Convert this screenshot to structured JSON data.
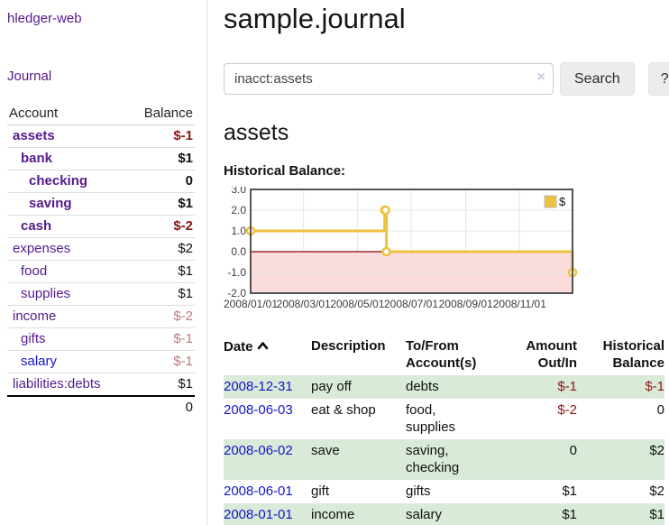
{
  "sidebar": {
    "app_title": "hledger-web",
    "journal_link": "Journal",
    "accounts_table": {
      "account_header": "Account",
      "balance_header": "Balance",
      "rows": [
        {
          "name": "assets",
          "indent": 1,
          "bold": true,
          "blue": false,
          "balance": "$-1",
          "balance_style": "neg"
        },
        {
          "name": "bank",
          "indent": 2,
          "bold": true,
          "blue": false,
          "balance": "$1",
          "balance_style": "pos"
        },
        {
          "name": "checking",
          "indent": 3,
          "bold": true,
          "blue": false,
          "balance": "0",
          "balance_style": "pos"
        },
        {
          "name": "saving",
          "indent": 3,
          "bold": true,
          "blue": false,
          "balance": "$1",
          "balance_style": "pos"
        },
        {
          "name": "cash",
          "indent": 2,
          "bold": true,
          "blue": false,
          "balance": "$-2",
          "balance_style": "neg"
        },
        {
          "name": "expenses",
          "indent": 1,
          "bold": false,
          "blue": false,
          "balance": "$2",
          "balance_style": "pos"
        },
        {
          "name": "food",
          "indent": 2,
          "bold": false,
          "blue": false,
          "balance": "$1",
          "balance_style": "pos"
        },
        {
          "name": "supplies",
          "indent": 2,
          "bold": false,
          "blue": false,
          "balance": "$1",
          "balance_style": "pos"
        },
        {
          "name": "income",
          "indent": 1,
          "bold": false,
          "blue": false,
          "balance": "$-2",
          "balance_style": "neg-light"
        },
        {
          "name": "gifts",
          "indent": 2,
          "bold": false,
          "blue": false,
          "balance": "$-1",
          "balance_style": "neg-light"
        },
        {
          "name": "salary",
          "indent": 2,
          "bold": false,
          "blue": true,
          "balance": "$-1",
          "balance_style": "neg-light"
        },
        {
          "name": "liabilities:debts",
          "indent": 1,
          "bold": false,
          "blue": false,
          "balance": "$1",
          "balance_style": "pos"
        }
      ],
      "total": "0"
    }
  },
  "main": {
    "title": "sample.journal",
    "search": {
      "value": "inacct:assets",
      "clear_icon": "×",
      "search_button": "Search",
      "help_button": "?"
    },
    "account_heading": "assets",
    "chart_title": "Historical Balance:"
  },
  "chart_data": {
    "type": "line",
    "title": "Historical Balance:",
    "line_style": "step-after",
    "legend": {
      "label": "$",
      "position": "top-right"
    },
    "ylim": [
      -2,
      3
    ],
    "y_ticks": [
      "3.0",
      "2.0",
      "1.0",
      "0.0",
      "-1.0",
      "-2.0"
    ],
    "y_tick_values": [
      3,
      2,
      1,
      0,
      -1,
      -2
    ],
    "x_ticks": [
      {
        "day": 0,
        "label": "2008/01/01"
      },
      {
        "day": 60,
        "label": "2008/03/01"
      },
      {
        "day": 121,
        "label": "2008/05/01"
      },
      {
        "day": 182,
        "label": "2008/07/01"
      },
      {
        "day": 244,
        "label": "2008/09/01"
      },
      {
        "day": 305,
        "label": "2008/11/01"
      }
    ],
    "x_range_days": 365,
    "series": [
      {
        "name": "$",
        "points": [
          {
            "date": "2008-01-01",
            "day": 0,
            "value": 1
          },
          {
            "date": "2008-06-01",
            "day": 152,
            "value": 2
          },
          {
            "date": "2008-06-02",
            "day": 153,
            "value": 2
          },
          {
            "date": "2008-06-03",
            "day": 154,
            "value": 0
          },
          {
            "date": "2008-12-31",
            "day": 365,
            "value": -1
          }
        ]
      }
    ],
    "negative_region_below": 0,
    "colors": {
      "line": "#edc240",
      "marker_fill": "#ffffff",
      "negative_region": "#fbdcdc",
      "zero_line": "#8b0000",
      "grid": "#e6e6e6",
      "border": "#545454",
      "tick_text": "#3c3c3c"
    }
  },
  "transactions": {
    "headers": {
      "date": "Date",
      "sort_icon_name": "chevron-up-icon",
      "description": "Description",
      "accounts": "To/From Account(s)",
      "amount": "Amount Out/In",
      "balance": "Historical Balance"
    },
    "rows": [
      {
        "date": "2008-12-31",
        "description": "pay off",
        "accounts": "debts",
        "amount": "$-1",
        "amount_neg": true,
        "balance": "$-1",
        "balance_neg": true,
        "shaded": true
      },
      {
        "date": "2008-06-03",
        "description": "eat & shop",
        "accounts": "food, supplies",
        "amount": "$-2",
        "amount_neg": true,
        "balance": "0",
        "balance_neg": false,
        "shaded": false
      },
      {
        "date": "2008-06-02",
        "description": "save",
        "accounts": "saving, checking",
        "amount": "0",
        "amount_neg": false,
        "balance": "$2",
        "balance_neg": false,
        "shaded": true
      },
      {
        "date": "2008-06-01",
        "description": "gift",
        "accounts": "gifts",
        "amount": "$1",
        "amount_neg": false,
        "balance": "$2",
        "balance_neg": false,
        "shaded": false
      },
      {
        "date": "2008-01-01",
        "description": "income",
        "accounts": "salary",
        "amount": "$1",
        "amount_neg": false,
        "balance": "$1",
        "balance_neg": false,
        "shaded": true
      }
    ]
  }
}
